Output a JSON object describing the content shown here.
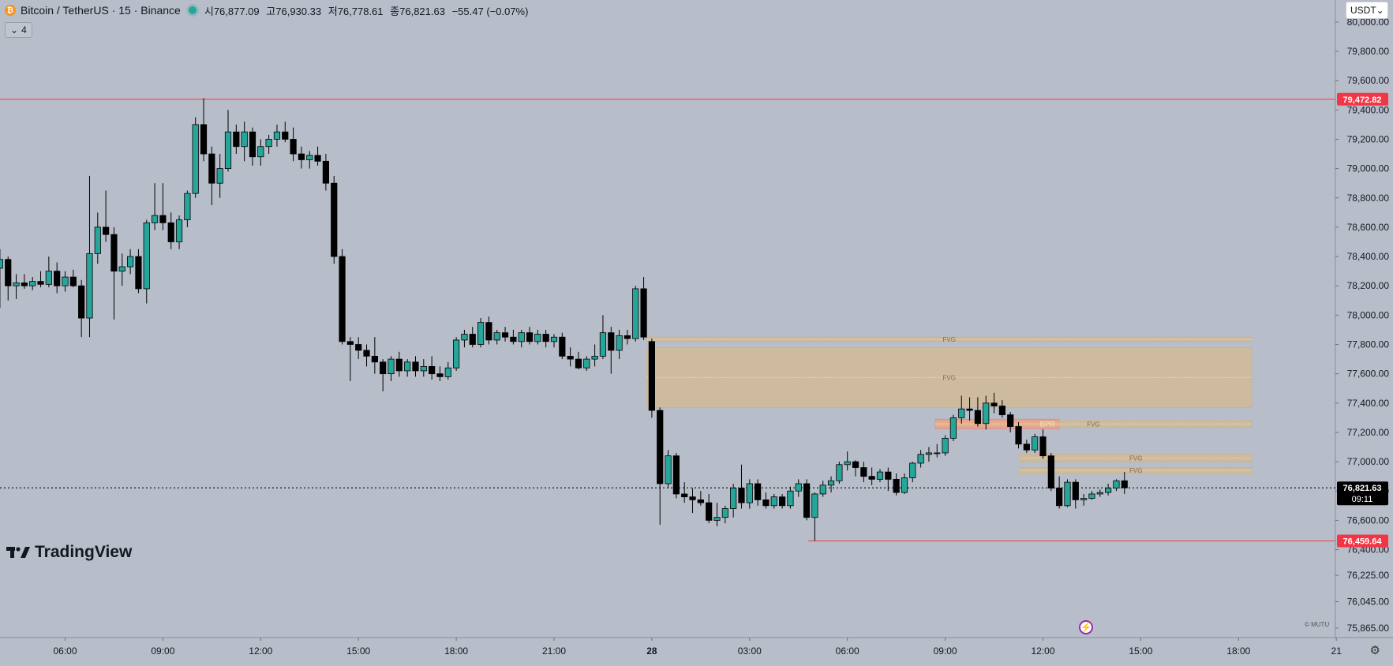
{
  "header": {
    "symbol": "Bitcoin / TetherUS · 15 · Binance",
    "ohlc": [
      {
        "label": "시",
        "value": "76,877.09"
      },
      {
        "label": "고",
        "value": "76,930.33"
      },
      {
        "label": "저",
        "value": "76,778.61"
      },
      {
        "label": "종",
        "value": "76,821.63"
      }
    ],
    "change": "−55.47 (−0.07%)"
  },
  "collapse_count": "4",
  "currency": "USDT",
  "brand": "TradingView",
  "watermark": "© MUTU",
  "colors": {
    "up": "#26a69a",
    "down": "#000000",
    "background": "#b8bec9",
    "level_line": "#f23645",
    "fvg_zone": "#e0b87a",
    "bpr_zone": "#ef9a9a"
  },
  "chart_data": {
    "type": "candlestick",
    "ylim": [
      75800,
      80150
    ],
    "y_ticks": [
      80000,
      79800,
      79600,
      79400,
      79200,
      79000,
      78800,
      78600,
      78400,
      78200,
      78000,
      77800,
      77600,
      77400,
      77200,
      77000,
      76800,
      76600,
      76400,
      76225,
      76045,
      75865
    ],
    "y_tick_labels": [
      "80,000.00",
      "79,800.00",
      "79,600.00",
      "79,400.00",
      "79,200.00",
      "79,000.00",
      "78,800.00",
      "78,600.00",
      "78,400.00",
      "78,200.00",
      "78,000.00",
      "77,800.00",
      "77,600.00",
      "77,400.00",
      "77,200.00",
      "77,000.00",
      "76,800.00",
      "76,600.00",
      "76,400.00",
      "76,225.00",
      "76,045.00",
      "75,865.00"
    ],
    "x_ticks": [
      {
        "t": "06:00",
        "hour": 6
      },
      {
        "t": "09:00",
        "hour": 9
      },
      {
        "t": "12:00",
        "hour": 12
      },
      {
        "t": "15:00",
        "hour": 15
      },
      {
        "t": "18:00",
        "hour": 18
      },
      {
        "t": "21:00",
        "hour": 21
      },
      {
        "t": "28",
        "hour": 24
      },
      {
        "t": "03:00",
        "hour": 27
      },
      {
        "t": "06:00",
        "hour": 30
      },
      {
        "t": "09:00",
        "hour": 33
      },
      {
        "t": "12:00",
        "hour": 36
      },
      {
        "t": "15:00",
        "hour": 39
      },
      {
        "t": "18:00",
        "hour": 42
      },
      {
        "t": "21",
        "hour": 45
      }
    ],
    "current_price": {
      "value": 76821.63,
      "label": "76,821.63",
      "countdown": "09:11"
    },
    "levels": [
      {
        "value": 79472.82,
        "label": "79,472.82",
        "from_hour": 4.0
      },
      {
        "value": 76459.64,
        "label": "76,459.64",
        "from_hour": 28.8
      }
    ],
    "zones": [
      {
        "label": "FVG",
        "kind": "fvg",
        "from_hour": 23.85,
        "to_hour": 42.4,
        "y1": 77780,
        "y2": 77370
      },
      {
        "label": "FVG",
        "kind": "fvg",
        "from_hour": 23.85,
        "to_hour": 42.4,
        "y1": 77850,
        "y2": 77820
      },
      {
        "label": "BPR",
        "kind": "bpr",
        "from_hour": 32.7,
        "to_hour": 36.5,
        "y1": 77290,
        "y2": 77225
      },
      {
        "label": "FVG",
        "kind": "fvg",
        "from_hour": 32.7,
        "to_hour": 42.4,
        "y1": 77280,
        "y2": 77235
      },
      {
        "label": "FVG",
        "kind": "fvg",
        "from_hour": 35.3,
        "to_hour": 42.4,
        "y1": 77050,
        "y2": 77000
      },
      {
        "label": "FVG",
        "kind": "fvg",
        "from_hour": 35.3,
        "to_hour": 42.4,
        "y1": 76960,
        "y2": 76920
      }
    ],
    "candles": [
      {
        "t": 4.0,
        "o": 78320,
        "h": 78450,
        "l": 78050,
        "c": 78380
      },
      {
        "t": 4.25,
        "o": 78380,
        "h": 78400,
        "l": 78100,
        "c": 78200
      },
      {
        "t": 4.5,
        "o": 78200,
        "h": 78280,
        "l": 78110,
        "c": 78220
      },
      {
        "t": 4.75,
        "o": 78220,
        "h": 78280,
        "l": 78180,
        "c": 78200
      },
      {
        "t": 5.0,
        "o": 78200,
        "h": 78260,
        "l": 78170,
        "c": 78230
      },
      {
        "t": 5.25,
        "o": 78230,
        "h": 78300,
        "l": 78190,
        "c": 78210
      },
      {
        "t": 5.5,
        "o": 78210,
        "h": 78400,
        "l": 78190,
        "c": 78300
      },
      {
        "t": 5.75,
        "o": 78300,
        "h": 78360,
        "l": 78150,
        "c": 78200
      },
      {
        "t": 6.0,
        "o": 78200,
        "h": 78300,
        "l": 78160,
        "c": 78260
      },
      {
        "t": 6.25,
        "o": 78260,
        "h": 78310,
        "l": 78190,
        "c": 78200
      },
      {
        "t": 6.5,
        "o": 78200,
        "h": 78240,
        "l": 77850,
        "c": 77980
      },
      {
        "t": 6.75,
        "o": 77980,
        "h": 78950,
        "l": 77850,
        "c": 78420
      },
      {
        "t": 7.0,
        "o": 78420,
        "h": 78700,
        "l": 78350,
        "c": 78600
      },
      {
        "t": 7.25,
        "o": 78600,
        "h": 78850,
        "l": 78500,
        "c": 78550
      },
      {
        "t": 7.5,
        "o": 78550,
        "h": 78600,
        "l": 77970,
        "c": 78300
      },
      {
        "t": 7.75,
        "o": 78300,
        "h": 78420,
        "l": 78200,
        "c": 78330
      },
      {
        "t": 8.0,
        "o": 78330,
        "h": 78450,
        "l": 78280,
        "c": 78400
      },
      {
        "t": 8.25,
        "o": 78400,
        "h": 78450,
        "l": 78150,
        "c": 78180
      },
      {
        "t": 8.5,
        "o": 78180,
        "h": 78650,
        "l": 78080,
        "c": 78630
      },
      {
        "t": 8.75,
        "o": 78630,
        "h": 78900,
        "l": 78580,
        "c": 78680
      },
      {
        "t": 9.0,
        "o": 78680,
        "h": 78900,
        "l": 78580,
        "c": 78630
      },
      {
        "t": 9.25,
        "o": 78630,
        "h": 78700,
        "l": 78450,
        "c": 78500
      },
      {
        "t": 9.5,
        "o": 78500,
        "h": 78680,
        "l": 78450,
        "c": 78650
      },
      {
        "t": 9.75,
        "o": 78650,
        "h": 78850,
        "l": 78600,
        "c": 78830
      },
      {
        "t": 10.0,
        "o": 78830,
        "h": 79350,
        "l": 78800,
        "c": 79300
      },
      {
        "t": 10.25,
        "o": 79300,
        "h": 79480,
        "l": 79050,
        "c": 79100
      },
      {
        "t": 10.5,
        "o": 79100,
        "h": 79150,
        "l": 78750,
        "c": 78900
      },
      {
        "t": 10.75,
        "o": 78900,
        "h": 79100,
        "l": 78800,
        "c": 79000
      },
      {
        "t": 11.0,
        "o": 79000,
        "h": 79400,
        "l": 78980,
        "c": 79250
      },
      {
        "t": 11.25,
        "o": 79250,
        "h": 79300,
        "l": 79100,
        "c": 79150
      },
      {
        "t": 11.5,
        "o": 79150,
        "h": 79320,
        "l": 79050,
        "c": 79250
      },
      {
        "t": 11.75,
        "o": 79250,
        "h": 79280,
        "l": 79020,
        "c": 79080
      },
      {
        "t": 12.0,
        "o": 79080,
        "h": 79200,
        "l": 79020,
        "c": 79150
      },
      {
        "t": 12.25,
        "o": 79150,
        "h": 79230,
        "l": 79100,
        "c": 79200
      },
      {
        "t": 12.5,
        "o": 79200,
        "h": 79300,
        "l": 79150,
        "c": 79250
      },
      {
        "t": 12.75,
        "o": 79250,
        "h": 79320,
        "l": 79180,
        "c": 79200
      },
      {
        "t": 13.0,
        "o": 79200,
        "h": 79280,
        "l": 79050,
        "c": 79100
      },
      {
        "t": 13.25,
        "o": 79100,
        "h": 79150,
        "l": 79000,
        "c": 79060
      },
      {
        "t": 13.5,
        "o": 79060,
        "h": 79120,
        "l": 79000,
        "c": 79090
      },
      {
        "t": 13.75,
        "o": 79090,
        "h": 79150,
        "l": 79020,
        "c": 79050
      },
      {
        "t": 14.0,
        "o": 79050,
        "h": 79100,
        "l": 78850,
        "c": 78900
      },
      {
        "t": 14.25,
        "o": 78900,
        "h": 78950,
        "l": 78350,
        "c": 78400
      },
      {
        "t": 14.5,
        "o": 78400,
        "h": 78450,
        "l": 77800,
        "c": 77820
      },
      {
        "t": 14.75,
        "o": 77820,
        "h": 77850,
        "l": 77550,
        "c": 77800
      },
      {
        "t": 15.0,
        "o": 77800,
        "h": 77850,
        "l": 77700,
        "c": 77760
      },
      {
        "t": 15.25,
        "o": 77760,
        "h": 77800,
        "l": 77650,
        "c": 77720
      },
      {
        "t": 15.5,
        "o": 77720,
        "h": 77850,
        "l": 77600,
        "c": 77680
      },
      {
        "t": 15.75,
        "o": 77680,
        "h": 77700,
        "l": 77480,
        "c": 77600
      },
      {
        "t": 16.0,
        "o": 77600,
        "h": 77720,
        "l": 77550,
        "c": 77700
      },
      {
        "t": 16.25,
        "o": 77700,
        "h": 77750,
        "l": 77580,
        "c": 77620
      },
      {
        "t": 16.5,
        "o": 77620,
        "h": 77700,
        "l": 77580,
        "c": 77680
      },
      {
        "t": 16.75,
        "o": 77680,
        "h": 77720,
        "l": 77580,
        "c": 77620
      },
      {
        "t": 17.0,
        "o": 77620,
        "h": 77700,
        "l": 77580,
        "c": 77650
      },
      {
        "t": 17.25,
        "o": 77650,
        "h": 77720,
        "l": 77560,
        "c": 77600
      },
      {
        "t": 17.5,
        "o": 77600,
        "h": 77650,
        "l": 77550,
        "c": 77580
      },
      {
        "t": 17.75,
        "o": 77580,
        "h": 77680,
        "l": 77560,
        "c": 77640
      },
      {
        "t": 18.0,
        "o": 77640,
        "h": 77850,
        "l": 77620,
        "c": 77830
      },
      {
        "t": 18.25,
        "o": 77830,
        "h": 77900,
        "l": 77780,
        "c": 77870
      },
      {
        "t": 18.5,
        "o": 77870,
        "h": 77920,
        "l": 77780,
        "c": 77800
      },
      {
        "t": 18.75,
        "o": 77800,
        "h": 77980,
        "l": 77780,
        "c": 77950
      },
      {
        "t": 19.0,
        "o": 77950,
        "h": 77990,
        "l": 77800,
        "c": 77830
      },
      {
        "t": 19.25,
        "o": 77830,
        "h": 77900,
        "l": 77800,
        "c": 77880
      },
      {
        "t": 19.5,
        "o": 77880,
        "h": 77920,
        "l": 77820,
        "c": 77850
      },
      {
        "t": 19.75,
        "o": 77850,
        "h": 77900,
        "l": 77800,
        "c": 77820
      },
      {
        "t": 20.0,
        "o": 77820,
        "h": 77900,
        "l": 77780,
        "c": 77880
      },
      {
        "t": 20.25,
        "o": 77880,
        "h": 77920,
        "l": 77800,
        "c": 77820
      },
      {
        "t": 20.5,
        "o": 77820,
        "h": 77900,
        "l": 77800,
        "c": 77870
      },
      {
        "t": 20.75,
        "o": 77870,
        "h": 77900,
        "l": 77780,
        "c": 77820
      },
      {
        "t": 21.0,
        "o": 77820,
        "h": 77870,
        "l": 77780,
        "c": 77850
      },
      {
        "t": 21.25,
        "o": 77850,
        "h": 77880,
        "l": 77700,
        "c": 77720
      },
      {
        "t": 21.5,
        "o": 77720,
        "h": 77780,
        "l": 77650,
        "c": 77700
      },
      {
        "t": 21.75,
        "o": 77700,
        "h": 77750,
        "l": 77630,
        "c": 77640
      },
      {
        "t": 22.0,
        "o": 77640,
        "h": 77720,
        "l": 77620,
        "c": 77700
      },
      {
        "t": 22.25,
        "o": 77700,
        "h": 77800,
        "l": 77650,
        "c": 77720
      },
      {
        "t": 22.5,
        "o": 77720,
        "h": 78000,
        "l": 77700,
        "c": 77880
      },
      {
        "t": 22.75,
        "o": 77880,
        "h": 77920,
        "l": 77600,
        "c": 77760
      },
      {
        "t": 23.0,
        "o": 77760,
        "h": 77900,
        "l": 77700,
        "c": 77860
      },
      {
        "t": 23.25,
        "o": 77860,
        "h": 77900,
        "l": 77800,
        "c": 77840
      },
      {
        "t": 23.5,
        "o": 77840,
        "h": 78200,
        "l": 77820,
        "c": 78180
      },
      {
        "t": 23.75,
        "o": 78180,
        "h": 78260,
        "l": 77830,
        "c": 77850
      },
      {
        "t": 24.0,
        "o": 77820,
        "h": 77840,
        "l": 77300,
        "c": 77350
      },
      {
        "t": 24.25,
        "o": 77350,
        "h": 77370,
        "l": 76570,
        "c": 76850
      },
      {
        "t": 24.5,
        "o": 76850,
        "h": 77080,
        "l": 76820,
        "c": 77040
      },
      {
        "t": 24.75,
        "o": 77040,
        "h": 77060,
        "l": 76750,
        "c": 76780
      },
      {
        "t": 25.0,
        "o": 76780,
        "h": 76860,
        "l": 76720,
        "c": 76760
      },
      {
        "t": 25.25,
        "o": 76760,
        "h": 76820,
        "l": 76650,
        "c": 76740
      },
      {
        "t": 25.5,
        "o": 76740,
        "h": 76800,
        "l": 76700,
        "c": 76720
      },
      {
        "t": 25.75,
        "o": 76720,
        "h": 76780,
        "l": 76580,
        "c": 76600
      },
      {
        "t": 26.0,
        "o": 76600,
        "h": 76720,
        "l": 76560,
        "c": 76620
      },
      {
        "t": 26.25,
        "o": 76620,
        "h": 76700,
        "l": 76580,
        "c": 76680
      },
      {
        "t": 26.5,
        "o": 76680,
        "h": 76850,
        "l": 76620,
        "c": 76820
      },
      {
        "t": 26.75,
        "o": 76820,
        "h": 76980,
        "l": 76680,
        "c": 76720
      },
      {
        "t": 27.0,
        "o": 76720,
        "h": 76880,
        "l": 76680,
        "c": 76850
      },
      {
        "t": 27.25,
        "o": 76850,
        "h": 76880,
        "l": 76700,
        "c": 76740
      },
      {
        "t": 27.5,
        "o": 76740,
        "h": 76790,
        "l": 76680,
        "c": 76700
      },
      {
        "t": 27.75,
        "o": 76700,
        "h": 76780,
        "l": 76680,
        "c": 76760
      },
      {
        "t": 28.0,
        "o": 76760,
        "h": 76780,
        "l": 76680,
        "c": 76700
      },
      {
        "t": 28.25,
        "o": 76700,
        "h": 76830,
        "l": 76680,
        "c": 76800
      },
      {
        "t": 28.5,
        "o": 76800,
        "h": 76880,
        "l": 76760,
        "c": 76850
      },
      {
        "t": 28.75,
        "o": 76850,
        "h": 76880,
        "l": 76600,
        "c": 76620
      },
      {
        "t": 29.0,
        "o": 76620,
        "h": 76790,
        "l": 76460,
        "c": 76780
      },
      {
        "t": 29.25,
        "o": 76780,
        "h": 76870,
        "l": 76760,
        "c": 76840
      },
      {
        "t": 29.5,
        "o": 76840,
        "h": 76900,
        "l": 76790,
        "c": 76870
      },
      {
        "t": 29.75,
        "o": 76870,
        "h": 77000,
        "l": 76850,
        "c": 76980
      },
      {
        "t": 30.0,
        "o": 76980,
        "h": 77070,
        "l": 76940,
        "c": 77000
      },
      {
        "t": 30.25,
        "o": 77000,
        "h": 77010,
        "l": 76900,
        "c": 76960
      },
      {
        "t": 30.5,
        "o": 76960,
        "h": 77000,
        "l": 76860,
        "c": 76900
      },
      {
        "t": 30.75,
        "o": 76900,
        "h": 76960,
        "l": 76840,
        "c": 76880
      },
      {
        "t": 31.0,
        "o": 76880,
        "h": 76950,
        "l": 76860,
        "c": 76930
      },
      {
        "t": 31.25,
        "o": 76930,
        "h": 76960,
        "l": 76800,
        "c": 76880
      },
      {
        "t": 31.5,
        "o": 76880,
        "h": 76920,
        "l": 76770,
        "c": 76790
      },
      {
        "t": 31.75,
        "o": 76790,
        "h": 76920,
        "l": 76780,
        "c": 76890
      },
      {
        "t": 32.0,
        "o": 76890,
        "h": 77000,
        "l": 76860,
        "c": 76990
      },
      {
        "t": 32.25,
        "o": 76990,
        "h": 77080,
        "l": 76960,
        "c": 77050
      },
      {
        "t": 32.5,
        "o": 77050,
        "h": 77100,
        "l": 77000,
        "c": 77060
      },
      {
        "t": 32.75,
        "o": 77060,
        "h": 77120,
        "l": 77030,
        "c": 77060
      },
      {
        "t": 33.0,
        "o": 77060,
        "h": 77180,
        "l": 77040,
        "c": 77160
      },
      {
        "t": 33.25,
        "o": 77160,
        "h": 77320,
        "l": 77140,
        "c": 77300
      },
      {
        "t": 33.5,
        "o": 77300,
        "h": 77450,
        "l": 77260,
        "c": 77360
      },
      {
        "t": 33.75,
        "o": 77360,
        "h": 77440,
        "l": 77280,
        "c": 77350
      },
      {
        "t": 34.0,
        "o": 77350,
        "h": 77440,
        "l": 77240,
        "c": 77260
      },
      {
        "t": 34.25,
        "o": 77260,
        "h": 77450,
        "l": 77220,
        "c": 77400
      },
      {
        "t": 34.5,
        "o": 77400,
        "h": 77470,
        "l": 77330,
        "c": 77380
      },
      {
        "t": 34.75,
        "o": 77380,
        "h": 77420,
        "l": 77300,
        "c": 77320
      },
      {
        "t": 35.0,
        "o": 77320,
        "h": 77340,
        "l": 77200,
        "c": 77240
      },
      {
        "t": 35.25,
        "o": 77240,
        "h": 77270,
        "l": 77090,
        "c": 77120
      },
      {
        "t": 35.5,
        "o": 77120,
        "h": 77150,
        "l": 77060,
        "c": 77080
      },
      {
        "t": 35.75,
        "o": 77080,
        "h": 77190,
        "l": 77060,
        "c": 77170
      },
      {
        "t": 36.0,
        "o": 77170,
        "h": 77220,
        "l": 77020,
        "c": 77040
      },
      {
        "t": 36.25,
        "o": 77040,
        "h": 77060,
        "l": 76800,
        "c": 76820
      },
      {
        "t": 36.5,
        "o": 76820,
        "h": 76900,
        "l": 76680,
        "c": 76700
      },
      {
        "t": 36.75,
        "o": 76700,
        "h": 76880,
        "l": 76690,
        "c": 76860
      },
      {
        "t": 37.0,
        "o": 76860,
        "h": 76880,
        "l": 76680,
        "c": 76740
      },
      {
        "t": 37.25,
        "o": 76740,
        "h": 76780,
        "l": 76700,
        "c": 76750
      },
      {
        "t": 37.5,
        "o": 76750,
        "h": 76800,
        "l": 76740,
        "c": 76780
      },
      {
        "t": 37.75,
        "o": 76780,
        "h": 76810,
        "l": 76760,
        "c": 76790
      },
      {
        "t": 38.0,
        "o": 76790,
        "h": 76850,
        "l": 76770,
        "c": 76820
      },
      {
        "t": 38.25,
        "o": 76820,
        "h": 76880,
        "l": 76800,
        "c": 76870
      },
      {
        "t": 38.5,
        "o": 76870,
        "h": 76930,
        "l": 76780,
        "c": 76822
      }
    ]
  }
}
